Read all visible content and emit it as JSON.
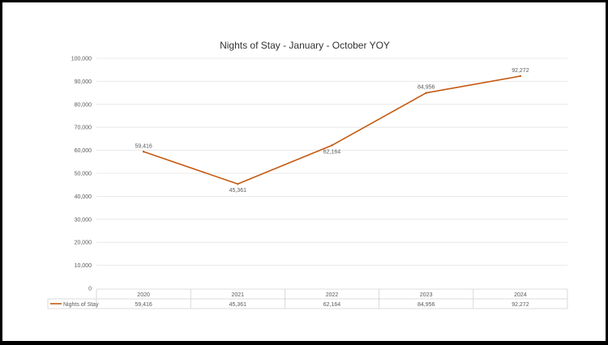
{
  "chart_data": {
    "type": "line",
    "title": "Nights of Stay - January - October YOY",
    "categories": [
      "2020",
      "2021",
      "2022",
      "2023",
      "2024"
    ],
    "series": [
      {
        "name": "Nights of Stay",
        "values": [
          59416,
          45361,
          62164,
          84956,
          92272
        ],
        "value_labels": [
          "59,416",
          "45,361",
          "62,164",
          "84,956",
          "92,272"
        ],
        "color": "#c55a11"
      }
    ],
    "ylim": [
      0,
      100000
    ],
    "yticks": [
      0,
      10000,
      20000,
      30000,
      40000,
      50000,
      60000,
      70000,
      80000,
      90000,
      100000
    ],
    "ytick_labels": [
      "0",
      "10,000",
      "20,000",
      "30,000",
      "40,000",
      "50,000",
      "60,000",
      "70,000",
      "80,000",
      "90,000",
      "100,000"
    ],
    "grid": true,
    "legend": "data-table",
    "data_table": true
  }
}
